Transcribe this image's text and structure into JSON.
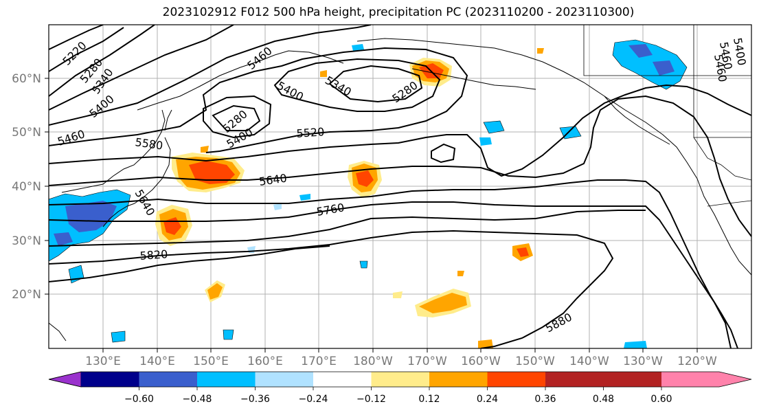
{
  "title": "2023102912 F012 500 hPa height, precipitation PC (2023110200 - 2023110300)",
  "lat_labels": [
    "60°N",
    "50°N",
    "40°N",
    "30°N",
    "20°N"
  ],
  "lon_labels": [
    "130°E",
    "140°E",
    "150°E",
    "160°E",
    "170°E",
    "180°W",
    "170°W",
    "160°W",
    "150°W",
    "140°W",
    "130°W",
    "120°W"
  ],
  "colorbar": {
    "colors": [
      "#9a32cd",
      "#00008b",
      "#3a5fcd",
      "#00bfff",
      "#b0e2ff",
      "#ffffff",
      "#ffec8b",
      "#ffa500",
      "#ff4500",
      "#b22222",
      "#ff82ab"
    ],
    "tick_labels": [
      "−0.60",
      "−0.48",
      "−0.36",
      "−0.24",
      "−0.12",
      "0.12",
      "0.24",
      "0.36",
      "0.48",
      "0.60"
    ]
  },
  "contour_labels": [
    "5220",
    "5280",
    "5340",
    "5400",
    "5460",
    "5460",
    "5400",
    "5340",
    "5280",
    "5460",
    "5580",
    "5280",
    "5400",
    "5520",
    "5640",
    "5760",
    "5820",
    "5880",
    "5640",
    "5460",
    "5400"
  ]
}
